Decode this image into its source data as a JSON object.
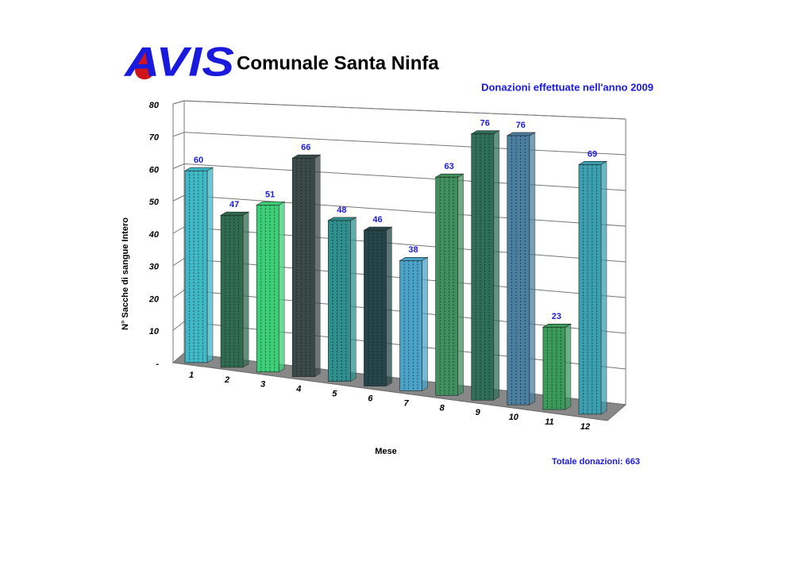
{
  "chart_data": {
    "type": "bar3d",
    "logo_text": "AVIS",
    "title": "Comunale Santa Ninfa",
    "subtitle": "Donazioni effettuate nell'anno 2009",
    "y_label": "N° Sacche di sangue Intero",
    "x_label": "Mese",
    "total_label": "Totale donazioni: 663",
    "categories": [
      "1",
      "2",
      "3",
      "4",
      "5",
      "6",
      "7",
      "8",
      "9",
      "10",
      "11",
      "12"
    ],
    "values": [
      60,
      47,
      51,
      66,
      48,
      46,
      38,
      63,
      76,
      76,
      23,
      69
    ],
    "colors": [
      "#3fb8c8",
      "#2e6b4f",
      "#3ccf78",
      "#3a4a48",
      "#2f8f8f",
      "#24464a",
      "#4aa3c9",
      "#3f8f5f",
      "#2f6f5a",
      "#4a7fa0",
      "#3a9a5a",
      "#3aa0b0"
    ],
    "ylim": [
      0,
      80
    ],
    "yticks": [
      {
        "value": 0,
        "label": "-"
      },
      10,
      20,
      30,
      40,
      50,
      60,
      70,
      80
    ],
    "grid": true
  }
}
